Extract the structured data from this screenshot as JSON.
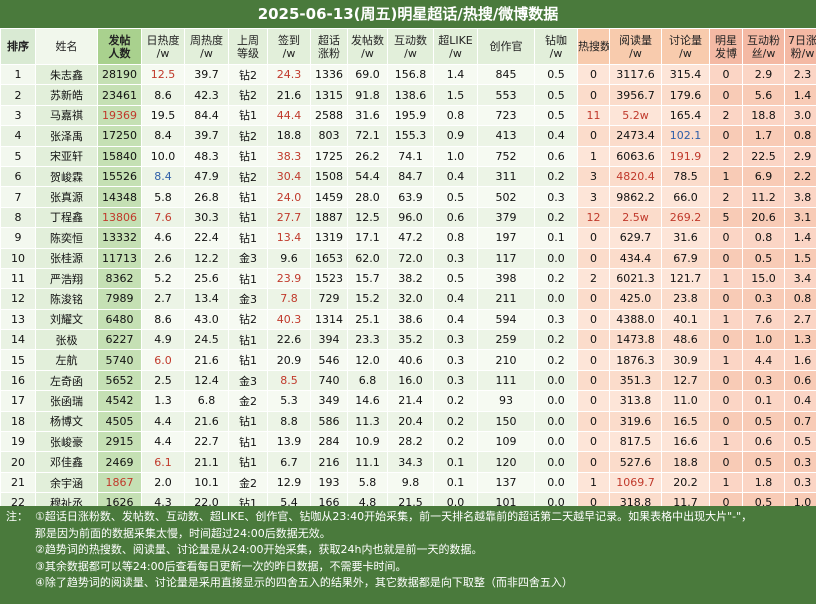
{
  "title": "2025-06-13(周五)明星超话/热搜/微博数据",
  "accent_colors": {
    "header_green": "#4a7a3c",
    "cell_green": "#c5e0b4",
    "cell_peach": "#fde5d8",
    "text_red": "#c0392b",
    "text_blue": "#2e5fa8"
  },
  "headers": {
    "rank": "排序",
    "name": "姓名",
    "total_l1": "发帖",
    "total_l2": "人数",
    "heat_l1": "日热度",
    "heat_l2": "/w",
    "week_l1": "周热度",
    "week_l2": "/w",
    "level_l1": "上周",
    "level_l2": "等级",
    "checkin_l1": "签到",
    "checkin_l2": "/w",
    "fans_l1": "超话",
    "fans_l2": "涨粉",
    "posts_l1": "发帖数",
    "posts_l2": "/w",
    "interact_l1": "互动数",
    "interact_l2": "/w",
    "like_l1": "超LIKE",
    "like_l2": "/w",
    "creator": "创作官",
    "drill_l1": "钻咖",
    "drill_l2": "/w",
    "hot": "热搜数",
    "read_l1": "阅读量",
    "read_l2": "/w",
    "discuss_l1": "讨论量",
    "discuss_l2": "/w",
    "star_l1": "明星",
    "star_l2": "发博",
    "mutual_l1": "互动粉",
    "mutual_l2": "丝/w",
    "gain_l1": "7日涨",
    "gain_l2": "粉/w"
  },
  "rows": [
    {
      "rank": "1",
      "name": "朱志鑫",
      "total": "28190",
      "heat": "12.5",
      "week": "39.7",
      "level": "钻2",
      "checkin": "24.3",
      "fans": "1336",
      "posts": "69.0",
      "interact": "156.8",
      "like": "1.4",
      "creator": "845",
      "drill": "0.5",
      "hot": "0",
      "read": "3117.6",
      "discuss": "315.4",
      "star": "0",
      "mutual": "2.9",
      "gain": "2.3"
    },
    {
      "rank": "2",
      "name": "苏新皓",
      "total": "23461",
      "heat": "8.6",
      "week": "42.3",
      "level": "钻2",
      "checkin": "21.6",
      "fans": "1315",
      "posts": "91.8",
      "interact": "138.6",
      "like": "1.5",
      "creator": "553",
      "drill": "0.5",
      "hot": "0",
      "read": "3956.7",
      "discuss": "179.6",
      "star": "0",
      "mutual": "5.6",
      "gain": "1.4"
    },
    {
      "rank": "3",
      "name": "马嘉祺",
      "total": "19369",
      "heat": "19.5",
      "week": "84.4",
      "level": "钻1",
      "checkin": "44.4",
      "fans": "2588",
      "posts": "31.6",
      "interact": "195.9",
      "like": "0.8",
      "creator": "723",
      "drill": "0.5",
      "hot": "11",
      "read": "5.2w",
      "discuss": "165.4",
      "star": "2",
      "mutual": "18.8",
      "gain": "3.0"
    },
    {
      "rank": "4",
      "name": "张泽禹",
      "total": "17250",
      "heat": "8.4",
      "week": "39.7",
      "level": "钻2",
      "checkin": "18.8",
      "fans": "803",
      "posts": "72.1",
      "interact": "155.3",
      "like": "0.9",
      "creator": "413",
      "drill": "0.4",
      "hot": "0",
      "read": "2473.4",
      "discuss": "102.1",
      "star": "0",
      "mutual": "1.7",
      "gain": "0.8"
    },
    {
      "rank": "5",
      "name": "宋亚轩",
      "total": "15840",
      "heat": "10.0",
      "week": "48.3",
      "level": "钻1",
      "checkin": "38.3",
      "fans": "1725",
      "posts": "26.2",
      "interact": "74.1",
      "like": "1.0",
      "creator": "752",
      "drill": "0.6",
      "hot": "1",
      "read": "6063.6",
      "discuss": "191.9",
      "star": "2",
      "mutual": "22.5",
      "gain": "2.9"
    },
    {
      "rank": "6",
      "name": "贺峻霖",
      "total": "15526",
      "heat": "8.4",
      "week": "47.9",
      "level": "钻2",
      "checkin": "30.4",
      "fans": "1508",
      "posts": "54.4",
      "interact": "84.7",
      "like": "0.4",
      "creator": "311",
      "drill": "0.2",
      "hot": "3",
      "read": "4820.4",
      "discuss": "78.5",
      "star": "1",
      "mutual": "6.9",
      "gain": "2.2"
    },
    {
      "rank": "7",
      "name": "张真源",
      "total": "14348",
      "heat": "5.8",
      "week": "26.8",
      "level": "钻1",
      "checkin": "24.0",
      "fans": "1459",
      "posts": "28.0",
      "interact": "63.9",
      "like": "0.5",
      "creator": "502",
      "drill": "0.3",
      "hot": "3",
      "read": "9862.2",
      "discuss": "66.0",
      "star": "2",
      "mutual": "11.2",
      "gain": "3.8"
    },
    {
      "rank": "8",
      "name": "丁程鑫",
      "total": "13806",
      "heat": "7.6",
      "week": "30.3",
      "level": "钻1",
      "checkin": "27.7",
      "fans": "1887",
      "posts": "12.5",
      "interact": "96.0",
      "like": "0.6",
      "creator": "379",
      "drill": "0.2",
      "hot": "12",
      "read": "2.5w",
      "discuss": "269.2",
      "star": "5",
      "mutual": "20.6",
      "gain": "3.1"
    },
    {
      "rank": "9",
      "name": "陈奕恒",
      "total": "13332",
      "heat": "4.6",
      "week": "22.4",
      "level": "钻1",
      "checkin": "13.4",
      "fans": "1319",
      "posts": "17.1",
      "interact": "47.2",
      "like": "0.8",
      "creator": "197",
      "drill": "0.1",
      "hot": "0",
      "read": "629.7",
      "discuss": "31.6",
      "star": "0",
      "mutual": "0.8",
      "gain": "1.4"
    },
    {
      "rank": "10",
      "name": "张桂源",
      "total": "11713",
      "heat": "2.6",
      "week": "12.2",
      "level": "金3",
      "checkin": "9.6",
      "fans": "1653",
      "posts": "62.0",
      "interact": "72.0",
      "like": "0.3",
      "creator": "117",
      "drill": "0.0",
      "hot": "0",
      "read": "434.4",
      "discuss": "67.9",
      "star": "0",
      "mutual": "0.5",
      "gain": "1.5"
    },
    {
      "rank": "11",
      "name": "严浩翔",
      "total": "8362",
      "heat": "5.2",
      "week": "25.6",
      "level": "钻1",
      "checkin": "23.9",
      "fans": "1523",
      "posts": "15.7",
      "interact": "38.2",
      "like": "0.5",
      "creator": "398",
      "drill": "0.2",
      "hot": "2",
      "read": "6021.3",
      "discuss": "121.7",
      "star": "1",
      "mutual": "15.0",
      "gain": "3.4"
    },
    {
      "rank": "12",
      "name": "陈浚铭",
      "total": "7989",
      "heat": "2.7",
      "week": "13.4",
      "level": "金3",
      "checkin": "7.8",
      "fans": "729",
      "posts": "15.2",
      "interact": "32.0",
      "like": "0.4",
      "creator": "211",
      "drill": "0.0",
      "hot": "0",
      "read": "425.0",
      "discuss": "23.8",
      "star": "0",
      "mutual": "0.3",
      "gain": "0.8"
    },
    {
      "rank": "13",
      "name": "刘耀文",
      "total": "6480",
      "heat": "8.6",
      "week": "43.0",
      "level": "钻2",
      "checkin": "40.3",
      "fans": "1314",
      "posts": "25.1",
      "interact": "38.6",
      "like": "0.4",
      "creator": "594",
      "drill": "0.3",
      "hot": "0",
      "read": "4388.0",
      "discuss": "40.1",
      "star": "1",
      "mutual": "7.6",
      "gain": "2.7"
    },
    {
      "rank": "14",
      "name": "张极",
      "total": "6227",
      "heat": "4.9",
      "week": "24.5",
      "level": "钻1",
      "checkin": "22.6",
      "fans": "394",
      "posts": "23.3",
      "interact": "35.2",
      "like": "0.3",
      "creator": "259",
      "drill": "0.2",
      "hot": "0",
      "read": "1473.8",
      "discuss": "48.6",
      "star": "0",
      "mutual": "1.0",
      "gain": "1.3"
    },
    {
      "rank": "15",
      "name": "左航",
      "total": "5740",
      "heat": "6.0",
      "week": "21.6",
      "level": "钻1",
      "checkin": "20.9",
      "fans": "546",
      "posts": "12.0",
      "interact": "40.6",
      "like": "0.3",
      "creator": "210",
      "drill": "0.2",
      "hot": "0",
      "read": "1876.3",
      "discuss": "30.9",
      "star": "1",
      "mutual": "4.4",
      "gain": "1.6"
    },
    {
      "rank": "16",
      "name": "左奇函",
      "total": "5652",
      "heat": "2.5",
      "week": "12.4",
      "level": "金3",
      "checkin": "8.5",
      "fans": "740",
      "posts": "6.8",
      "interact": "16.0",
      "like": "0.3",
      "creator": "111",
      "drill": "0.0",
      "hot": "0",
      "read": "351.3",
      "discuss": "12.7",
      "star": "0",
      "mutual": "0.3",
      "gain": "0.6"
    },
    {
      "rank": "17",
      "name": "张函瑞",
      "total": "4542",
      "heat": "1.3",
      "week": "6.8",
      "level": "金2",
      "checkin": "5.3",
      "fans": "349",
      "posts": "14.6",
      "interact": "21.4",
      "like": "0.2",
      "creator": "93",
      "drill": "0.0",
      "hot": "0",
      "read": "313.8",
      "discuss": "11.0",
      "star": "0",
      "mutual": "0.1",
      "gain": "0.4"
    },
    {
      "rank": "18",
      "name": "杨博文",
      "total": "4505",
      "heat": "4.4",
      "week": "21.6",
      "level": "钻1",
      "checkin": "8.8",
      "fans": "586",
      "posts": "11.3",
      "interact": "20.4",
      "like": "0.2",
      "creator": "150",
      "drill": "0.0",
      "hot": "0",
      "read": "319.6",
      "discuss": "16.5",
      "star": "0",
      "mutual": "0.5",
      "gain": "0.7"
    },
    {
      "rank": "19",
      "name": "张峻豪",
      "total": "2915",
      "heat": "4.4",
      "week": "22.7",
      "level": "钻1",
      "checkin": "13.9",
      "fans": "284",
      "posts": "10.9",
      "interact": "28.2",
      "like": "0.2",
      "creator": "109",
      "drill": "0.0",
      "hot": "0",
      "read": "817.5",
      "discuss": "16.6",
      "star": "1",
      "mutual": "0.6",
      "gain": "0.5"
    },
    {
      "rank": "20",
      "name": "邓佳鑫",
      "total": "2469",
      "heat": "6.1",
      "week": "21.1",
      "level": "钻1",
      "checkin": "6.7",
      "fans": "216",
      "posts": "11.1",
      "interact": "34.3",
      "like": "0.1",
      "creator": "120",
      "drill": "0.0",
      "hot": "0",
      "read": "527.6",
      "discuss": "18.8",
      "star": "0",
      "mutual": "0.5",
      "gain": "0.3"
    },
    {
      "rank": "21",
      "name": "余宇涵",
      "total": "1867",
      "heat": "2.0",
      "week": "10.1",
      "level": "金2",
      "checkin": "12.9",
      "fans": "193",
      "posts": "5.8",
      "interact": "9.8",
      "like": "0.1",
      "creator": "137",
      "drill": "0.0",
      "hot": "1",
      "read": "1069.7",
      "discuss": "20.2",
      "star": "1",
      "mutual": "1.8",
      "gain": "0.3"
    },
    {
      "rank": "22",
      "name": "穆祉丞",
      "total": "1626",
      "heat": "4.3",
      "week": "22.0",
      "level": "钻1",
      "checkin": "5.4",
      "fans": "166",
      "posts": "4.8",
      "interact": "21.5",
      "like": "0.0",
      "creator": "101",
      "drill": "0.0",
      "hot": "0",
      "read": "318.8",
      "discuss": "11.7",
      "star": "0",
      "mutual": "0.5",
      "gain": "1.0"
    }
  ],
  "highlights": {
    "red": [
      [
        "1",
        "heat"
      ],
      [
        "1",
        "checkin"
      ],
      [
        "3",
        "total"
      ],
      [
        "3",
        "checkin"
      ],
      [
        "3",
        "read"
      ],
      [
        "3",
        "hot"
      ],
      [
        "5",
        "checkin"
      ],
      [
        "5",
        "discuss"
      ],
      [
        "6",
        "checkin"
      ],
      [
        "6",
        "read"
      ],
      [
        "7",
        "checkin"
      ],
      [
        "8",
        "total"
      ],
      [
        "8",
        "heat"
      ],
      [
        "8",
        "checkin"
      ],
      [
        "8",
        "hot"
      ],
      [
        "8",
        "read"
      ],
      [
        "8",
        "discuss"
      ],
      [
        "9",
        "checkin"
      ],
      [
        "11",
        "checkin"
      ],
      [
        "12",
        "checkin"
      ],
      [
        "13",
        "checkin"
      ],
      [
        "15",
        "heat"
      ],
      [
        "16",
        "checkin"
      ],
      [
        "20",
        "heat"
      ],
      [
        "21",
        "total"
      ],
      [
        "21",
        "read"
      ]
    ],
    "blue": [
      [
        "4",
        "discuss"
      ],
      [
        "6",
        "heat"
      ]
    ]
  },
  "notes": {
    "n1_prefix": "注：",
    "n1": "①超话日涨粉数、发帖数、互动数、超LIKE、创作官、钻咖从23:40开始采集，前一天排名越靠前的超话第二天越早记录。如果表格中出现大片\"-\"，",
    "n1b": "那是因为前面的数据采集太慢，时间超过24:00后数据无效。",
    "n2": "②趋势词的热搜数、阅读量、讨论量是从24:00开始采集，获取24h内也就是前一天的数据。",
    "n3": "③其余数据都可以等24:00后查看每日更新一次的昨日数据，不需要卡时间。",
    "n4": "④除了趋势词的阅读量、讨论量是采用直接显示的四舍五入的结果外，其它数据都是向下取整（而非四舍五入）"
  }
}
